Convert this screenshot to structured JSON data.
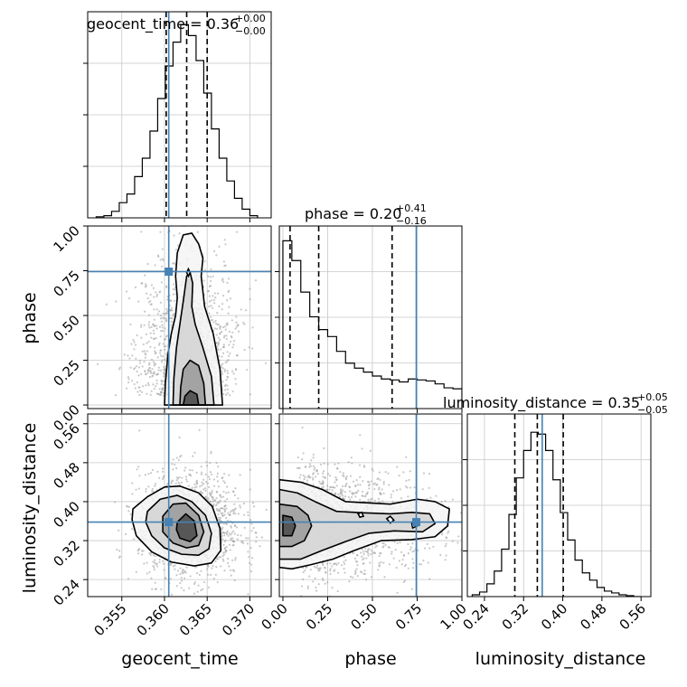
{
  "chart_data": {
    "type": "corner",
    "parameters": [
      "geocent_time",
      "phase",
      "luminosity_distance"
    ],
    "truths": {
      "geocent_time": 0.3605,
      "phase": 0.745,
      "luminosity_distance": 0.358
    },
    "colors": {
      "truth": "#4682b4",
      "hist": "#000000",
      "grid": "#c8c8c8",
      "points": "#9a9a9a"
    },
    "titles": [
      {
        "name": "geocent_time",
        "prefix": "geocent_time = 0.36",
        "plus": "+0.00",
        "minus": "−0.00"
      },
      {
        "name": "phase",
        "prefix": "phase = 0.20",
        "plus": "+0.41",
        "minus": "−0.16"
      },
      {
        "name": "luminosity_distance",
        "prefix": "luminosity_distance = 0.35",
        "plus": "+0.05",
        "minus": "−0.05"
      }
    ],
    "axes": {
      "geocent_time": {
        "range": [
          0.351,
          0.3725
        ],
        "ticks": [
          0.355,
          0.36,
          0.365,
          0.37
        ],
        "ticklabels": [
          "0.355",
          "0.360",
          "0.365",
          "0.370"
        ],
        "label": "geocent_time"
      },
      "phase": {
        "range": [
          -0.02,
          1.0
        ],
        "ticks": [
          0.0,
          0.25,
          0.5,
          0.75,
          1.0
        ],
        "ticklabels": [
          "0.00",
          "0.25",
          "0.50",
          "0.75",
          "1.00"
        ],
        "label": "phase"
      },
      "luminosity_distance": {
        "range": [
          0.205,
          0.58
        ],
        "ticks": [
          0.24,
          0.32,
          0.4,
          0.48,
          0.56
        ],
        "ticklabels": [
          "0.24",
          "0.32",
          "0.40",
          "0.48",
          "0.56"
        ],
        "label": "luminosity_distance"
      }
    },
    "histograms": {
      "geocent_time": {
        "edges": [
          0.352,
          0.3529,
          0.3538,
          0.3547,
          0.3556,
          0.3565,
          0.3574,
          0.3583,
          0.3592,
          0.3601,
          0.361,
          0.3619,
          0.3628,
          0.3637,
          0.3646,
          0.3655,
          0.3664,
          0.3673,
          0.3682,
          0.3691,
          0.37,
          0.3709
        ],
        "counts": [
          1,
          2,
          6,
          14,
          22,
          38,
          55,
          80,
          110,
          140,
          162,
          178,
          168,
          145,
          115,
          82,
          55,
          34,
          18,
          8,
          2
        ],
        "quantiles": [
          0.3602,
          0.3626,
          0.365
        ],
        "ylim": [
          0,
          190
        ]
      },
      "phase": {
        "edges": [
          0.0,
          0.05,
          0.1,
          0.15,
          0.2,
          0.25,
          0.3,
          0.35,
          0.4,
          0.45,
          0.5,
          0.55,
          0.6,
          0.65,
          0.7,
          0.75,
          0.8,
          0.85,
          0.9,
          0.95,
          1.0
        ],
        "counts": [
          170,
          150,
          118,
          93,
          80,
          73,
          58,
          46,
          41,
          37,
          33,
          30,
          29,
          27,
          30,
          29,
          28,
          25,
          21,
          20
        ],
        "quantiles": [
          0.04,
          0.2,
          0.61
        ],
        "ylim": [
          0,
          185
        ]
      },
      "luminosity_distance": {
        "edges": [
          0.215,
          0.23,
          0.245,
          0.26,
          0.275,
          0.29,
          0.305,
          0.32,
          0.335,
          0.35,
          0.365,
          0.38,
          0.395,
          0.41,
          0.425,
          0.44,
          0.455,
          0.47,
          0.485,
          0.5,
          0.515,
          0.53,
          0.545,
          0.56
        ],
        "counts": [
          2,
          5,
          14,
          28,
          52,
          90,
          130,
          160,
          180,
          178,
          160,
          128,
          92,
          62,
          40,
          26,
          18,
          10,
          6,
          4,
          2,
          1,
          0
        ],
        "quantiles": [
          0.302,
          0.348,
          0.401
        ],
        "ylim": [
          0,
          200
        ]
      }
    },
    "scatter": [
      {
        "x": "geocent_time",
        "y": "phase",
        "center": [
          0.3627,
          0.05
        ],
        "spread": [
          0.0028,
          0.35
        ],
        "n": 1400
      },
      {
        "x": "geocent_time",
        "y": "luminosity_distance",
        "center": [
          0.363,
          0.35
        ],
        "spread": [
          0.003,
          0.055
        ],
        "n": 1400
      },
      {
        "x": "phase",
        "y": "luminosity_distance",
        "center": [
          0.08,
          0.355
        ],
        "spread": [
          0.35,
          0.055
        ],
        "n": 1400
      }
    ],
    "contours": [
      {
        "x": "geocent_time",
        "y": "phase",
        "levels": [
          [
            [
              0.36,
              0.0
            ],
            [
              0.3601,
              0.12
            ],
            [
              0.3604,
              0.28
            ],
            [
              0.3608,
              0.4
            ],
            [
              0.3613,
              0.5
            ],
            [
              0.3615,
              0.6
            ],
            [
              0.3613,
              0.72
            ],
            [
              0.3615,
              0.85
            ],
            [
              0.3622,
              0.95
            ],
            [
              0.3632,
              0.96
            ],
            [
              0.364,
              0.9
            ],
            [
              0.3645,
              0.82
            ],
            [
              0.3643,
              0.72
            ],
            [
              0.3647,
              0.55
            ],
            [
              0.3657,
              0.4
            ],
            [
              0.3665,
              0.2
            ],
            [
              0.3668,
              0.0
            ]
          ],
          [
            [
              0.361,
              0.0
            ],
            [
              0.3611,
              0.15
            ],
            [
              0.3614,
              0.32
            ],
            [
              0.3618,
              0.45
            ],
            [
              0.3622,
              0.58
            ],
            [
              0.3626,
              0.72
            ],
            [
              0.363,
              0.74
            ],
            [
              0.3633,
              0.68
            ],
            [
              0.3632,
              0.55
            ],
            [
              0.3636,
              0.45
            ],
            [
              0.3645,
              0.32
            ],
            [
              0.3655,
              0.16
            ],
            [
              0.3658,
              0.0
            ]
          ],
          [
            [
              0.3618,
              0.0
            ],
            [
              0.3619,
              0.1
            ],
            [
              0.3622,
              0.2
            ],
            [
              0.363,
              0.25
            ],
            [
              0.364,
              0.22
            ],
            [
              0.3646,
              0.12
            ],
            [
              0.3648,
              0.0
            ]
          ],
          [
            [
              0.3622,
              0.0
            ],
            [
              0.3624,
              0.05
            ],
            [
              0.363,
              0.08
            ],
            [
              0.3638,
              0.06
            ],
            [
              0.364,
              0.0
            ]
          ]
        ]
      },
      {
        "x": "geocent_time",
        "y": "luminosity_distance",
        "levels": [
          [
            [
              0.3563,
              0.385
            ],
            [
              0.358,
              0.41
            ],
            [
              0.36,
              0.43
            ],
            [
              0.3618,
              0.432
            ],
            [
              0.364,
              0.418
            ],
            [
              0.3656,
              0.39
            ],
            [
              0.3665,
              0.345
            ],
            [
              0.3666,
              0.3
            ],
            [
              0.3655,
              0.274
            ],
            [
              0.3635,
              0.268
            ],
            [
              0.3608,
              0.276
            ],
            [
              0.3585,
              0.297
            ],
            [
              0.3567,
              0.33
            ],
            [
              0.3562,
              0.363
            ]
          ],
          [
            [
              0.358,
              0.38
            ],
            [
              0.3595,
              0.405
            ],
            [
              0.3615,
              0.413
            ],
            [
              0.3632,
              0.4
            ],
            [
              0.3648,
              0.372
            ],
            [
              0.3655,
              0.335
            ],
            [
              0.3652,
              0.303
            ],
            [
              0.364,
              0.29
            ],
            [
              0.362,
              0.292
            ],
            [
              0.36,
              0.305
            ],
            [
              0.3585,
              0.33
            ],
            [
              0.3578,
              0.358
            ]
          ],
          [
            [
              0.3598,
              0.37
            ],
            [
              0.361,
              0.395
            ],
            [
              0.3625,
              0.397
            ],
            [
              0.364,
              0.372
            ],
            [
              0.3646,
              0.338
            ],
            [
              0.364,
              0.31
            ],
            [
              0.3626,
              0.305
            ],
            [
              0.361,
              0.315
            ],
            [
              0.3598,
              0.338
            ]
          ],
          [
            [
              0.3615,
              0.358
            ],
            [
              0.3625,
              0.375
            ],
            [
              0.3635,
              0.36
            ],
            [
              0.3638,
              0.33
            ],
            [
              0.363,
              0.318
            ],
            [
              0.3618,
              0.325
            ],
            [
              0.3614,
              0.343
            ]
          ]
        ]
      },
      {
        "x": "phase",
        "y": "luminosity_distance",
        "levels": [
          [
            [
              -0.02,
              0.445
            ],
            [
              0.1,
              0.44
            ],
            [
              0.22,
              0.425
            ],
            [
              0.35,
              0.4
            ],
            [
              0.45,
              0.398
            ],
            [
              0.6,
              0.395
            ],
            [
              0.75,
              0.405
            ],
            [
              0.85,
              0.4
            ],
            [
              0.93,
              0.385
            ],
            [
              0.92,
              0.35
            ],
            [
              0.85,
              0.328
            ],
            [
              0.72,
              0.322
            ],
            [
              0.55,
              0.32
            ],
            [
              0.4,
              0.3
            ],
            [
              0.28,
              0.282
            ],
            [
              0.15,
              0.27
            ],
            [
              0.05,
              0.262
            ],
            [
              -0.02,
              0.265
            ]
          ],
          [
            [
              -0.02,
              0.425
            ],
            [
              0.08,
              0.418
            ],
            [
              0.18,
              0.4
            ],
            [
              0.3,
              0.38
            ],
            [
              0.45,
              0.377
            ],
            [
              0.6,
              0.375
            ],
            [
              0.72,
              0.378
            ],
            [
              0.82,
              0.375
            ],
            [
              0.85,
              0.355
            ],
            [
              0.78,
              0.338
            ],
            [
              0.62,
              0.34
            ],
            [
              0.48,
              0.335
            ],
            [
              0.35,
              0.318
            ],
            [
              0.22,
              0.3
            ],
            [
              0.1,
              0.282
            ],
            [
              -0.02,
              0.282
            ]
          ],
          [
            [
              -0.02,
              0.395
            ],
            [
              0.08,
              0.39
            ],
            [
              0.14,
              0.372
            ],
            [
              0.16,
              0.35
            ],
            [
              0.12,
              0.32
            ],
            [
              0.05,
              0.308
            ],
            [
              -0.02,
              0.308
            ]
          ],
          [
            [
              0.0,
              0.372
            ],
            [
              0.05,
              0.368
            ],
            [
              0.07,
              0.35
            ],
            [
              0.05,
              0.33
            ],
            [
              0.0,
              0.33
            ]
          ]
        ]
      }
    ],
    "island_contours": [
      {
        "x": "geocent_time",
        "y": "phase",
        "points": [
          [
            0.3626,
            0.74
          ],
          [
            0.3628,
            0.76
          ],
          [
            0.363,
            0.74
          ],
          [
            0.3628,
            0.72
          ]
        ]
      },
      {
        "x": "phase",
        "y": "luminosity_distance",
        "points": [
          [
            0.58,
            0.365
          ],
          [
            0.6,
            0.37
          ],
          [
            0.62,
            0.362
          ],
          [
            0.6,
            0.356
          ]
        ]
      },
      {
        "x": "phase",
        "y": "luminosity_distance",
        "points": [
          [
            0.72,
            0.355
          ],
          [
            0.745,
            0.36
          ],
          [
            0.75,
            0.35
          ],
          [
            0.725,
            0.346
          ]
        ]
      },
      {
        "x": "phase",
        "y": "luminosity_distance",
        "points": [
          [
            0.42,
            0.375
          ],
          [
            0.44,
            0.378
          ],
          [
            0.45,
            0.37
          ],
          [
            0.43,
            0.368
          ]
        ]
      }
    ]
  }
}
